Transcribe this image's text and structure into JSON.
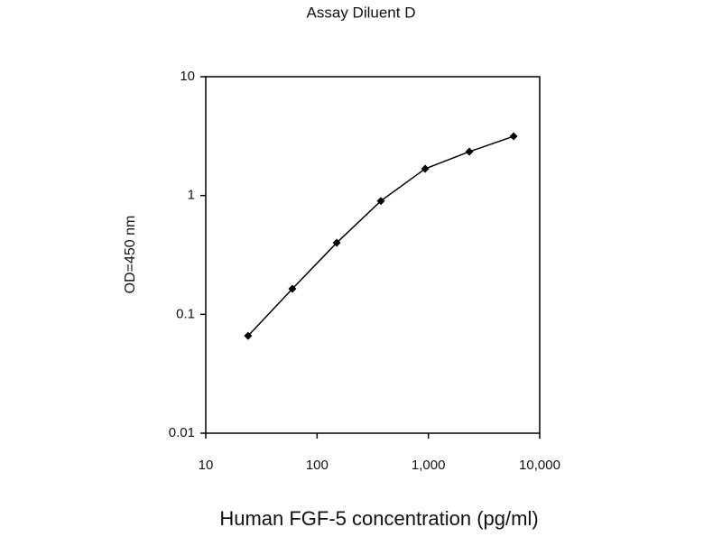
{
  "chart_data": {
    "type": "line",
    "title": "Assay Diluent  D",
    "x_label": "Human FGF-5 concentration (pg/ml)",
    "y_label": "OD=450 nm",
    "x_log": true,
    "y_log": true,
    "xlim": [
      10,
      10000
    ],
    "xticks": [
      10,
      100,
      {
        "value": 1000,
        "label": "1,000"
      },
      {
        "value": 10000,
        "label": "10,000"
      }
    ],
    "ylim": [
      0.01,
      10
    ],
    "yticks": [
      0.01,
      0.1,
      1,
      10
    ],
    "series": [
      {
        "color": "#000000",
        "x": [
          24,
          60,
          150,
          374,
          935,
          2335,
          5830
        ],
        "values": [
          0.066,
          0.164,
          0.4,
          0.9,
          1.68,
          2.34,
          3.15
        ]
      }
    ]
  }
}
